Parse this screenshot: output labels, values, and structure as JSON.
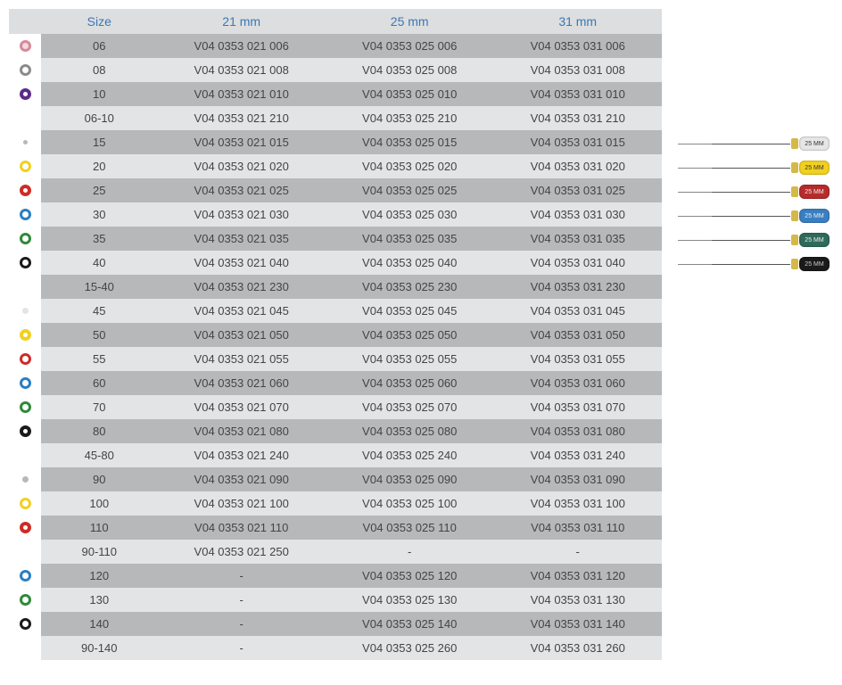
{
  "table": {
    "header_color": "#3a77b7",
    "row_colors": {
      "dark": "#b7b8ba",
      "light": "#e3e4e6",
      "header": "#dddedf"
    },
    "columns": [
      "",
      "Size",
      "21 mm",
      "25 mm",
      "31 mm"
    ],
    "rows": [
      {
        "ring": {
          "border": "#d58a9a",
          "fill": "#f5d9df",
          "w": 3
        },
        "size": "06",
        "c21": "V04 0353 021 006",
        "c25": "V04 0353 025 006",
        "c31": "V04 0353 031 006",
        "shade": "dark"
      },
      {
        "ring": {
          "border": "#8a8b8d",
          "fill": "#ffffff",
          "w": 3
        },
        "size": "08",
        "c21": "V04 0353 021 008",
        "c25": "V04 0353 025 008",
        "c31": "V04 0353 031 008",
        "shade": "light"
      },
      {
        "ring": {
          "border": "#5a2d88",
          "fill": "#ffffff",
          "w": 4
        },
        "size": "10",
        "c21": "V04 0353 021 010",
        "c25": "V04 0353 025 010",
        "c31": "V04 0353 031 010",
        "shade": "dark"
      },
      {
        "ring": null,
        "size": "06-10",
        "c21": "V04 0353 021 210",
        "c25": "V04 0353 025 210",
        "c31": "V04 0353 031 210",
        "shade": "light"
      },
      {
        "ring": {
          "border": "#ffffff",
          "fill": "#b7b8ba",
          "w": 4
        },
        "size": "15",
        "c21": "V04 0353 021 015",
        "c25": "V04 0353 025 015",
        "c31": "V04 0353 031 015",
        "shade": "dark"
      },
      {
        "ring": {
          "border": "#f2d021",
          "fill": "#ffffff",
          "w": 3
        },
        "size": "20",
        "c21": "V04 0353 021 020",
        "c25": "V04 0353 025 020",
        "c31": "V04 0353 031 020",
        "shade": "light"
      },
      {
        "ring": {
          "border": "#cf2b26",
          "fill": "#ffffff",
          "w": 4
        },
        "size": "25",
        "c21": "V04 0353 021 025",
        "c25": "V04 0353 025 025",
        "c31": "V04 0353 031 025",
        "shade": "dark"
      },
      {
        "ring": {
          "border": "#2b7fc2",
          "fill": "#ffffff",
          "w": 3
        },
        "size": "30",
        "c21": "V04 0353 021 030",
        "c25": "V04 0353 025 030",
        "c31": "V04 0353 031 030",
        "shade": "light"
      },
      {
        "ring": {
          "border": "#2e8a3a",
          "fill": "#ffffff",
          "w": 3
        },
        "size": "35",
        "c21": "V04 0353 021 035",
        "c25": "V04 0353 025 035",
        "c31": "V04 0353 031 035",
        "shade": "dark"
      },
      {
        "ring": {
          "border": "#1a1a1a",
          "fill": "#ffffff",
          "w": 3
        },
        "size": "40",
        "c21": "V04 0353 021 040",
        "c25": "V04 0353 025 040",
        "c31": "V04 0353 031 040",
        "shade": "light"
      },
      {
        "ring": null,
        "size": "15-40",
        "c21": "V04 0353 021 230",
        "c25": "V04 0353 025 230",
        "c31": "V04 0353 031 230",
        "shade": "dark"
      },
      {
        "ring": {
          "border": "#ffffff",
          "fill": "#e3e4e6",
          "w": 3
        },
        "size": "45",
        "c21": "V04 0353 021 045",
        "c25": "V04 0353 025 045",
        "c31": "V04 0353 031 045",
        "shade": "light"
      },
      {
        "ring": {
          "border": "#f2d021",
          "fill": "#ffffff",
          "w": 4
        },
        "size": "50",
        "c21": "V04 0353 021 050",
        "c25": "V04 0353 025 050",
        "c31": "V04 0353 031 050",
        "shade": "dark"
      },
      {
        "ring": {
          "border": "#cf2b26",
          "fill": "#ffffff",
          "w": 3
        },
        "size": "55",
        "c21": "V04 0353 021 055",
        "c25": "V04 0353 025 055",
        "c31": "V04 0353 031 055",
        "shade": "light"
      },
      {
        "ring": {
          "border": "#2b7fc2",
          "fill": "#ffffff",
          "w": 3
        },
        "size": "60",
        "c21": "V04 0353 021 060",
        "c25": "V04 0353 025 060",
        "c31": "V04 0353 031 060",
        "shade": "dark"
      },
      {
        "ring": {
          "border": "#2e8a3a",
          "fill": "#ffffff",
          "w": 3
        },
        "size": "70",
        "c21": "V04 0353 021 070",
        "c25": "V04 0353 025 070",
        "c31": "V04 0353 031 070",
        "shade": "light"
      },
      {
        "ring": {
          "border": "#1a1a1a",
          "fill": "#ffffff",
          "w": 4
        },
        "size": "80",
        "c21": "V04 0353 021 080",
        "c25": "V04 0353 025 080",
        "c31": "V04 0353 031 080",
        "shade": "dark"
      },
      {
        "ring": null,
        "size": "45-80",
        "c21": "V04 0353 021 240",
        "c25": "V04 0353 025 240",
        "c31": "V04 0353 031 240",
        "shade": "light"
      },
      {
        "ring": {
          "border": "#ffffff",
          "fill": "#b7b8ba",
          "w": 3
        },
        "size": "90",
        "c21": "V04 0353 021 090",
        "c25": "V04 0353 025 090",
        "c31": "V04 0353 031 090",
        "shade": "dark"
      },
      {
        "ring": {
          "border": "#f2d021",
          "fill": "#ffffff",
          "w": 3
        },
        "size": "100",
        "c21": "V04 0353 021 100",
        "c25": "V04 0353 025 100",
        "c31": "V04 0353 031 100",
        "shade": "light"
      },
      {
        "ring": {
          "border": "#cf2b26",
          "fill": "#ffffff",
          "w": 4
        },
        "size": "110",
        "c21": "V04 0353 021 110",
        "c25": "V04 0353 025 110",
        "c31": "V04 0353 031 110",
        "shade": "dark"
      },
      {
        "ring": null,
        "size": "90-110",
        "c21": "V04 0353 021 250",
        "c25": "-",
        "c31": "-",
        "shade": "light"
      },
      {
        "ring": {
          "border": "#2b7fc2",
          "fill": "#ffffff",
          "w": 3
        },
        "size": "120",
        "c21": "-",
        "c25": "V04 0353 025 120",
        "c31": "V04 0353 031 120",
        "shade": "dark"
      },
      {
        "ring": {
          "border": "#2e8a3a",
          "fill": "#ffffff",
          "w": 3
        },
        "size": "130",
        "c21": "-",
        "c25": "V04 0353 025 130",
        "c31": "V04 0353 031 130",
        "shade": "light"
      },
      {
        "ring": {
          "border": "#1a1a1a",
          "fill": "#ffffff",
          "w": 3
        },
        "size": "140",
        "c21": "-",
        "c25": "V04 0353 025 140",
        "c31": "V04 0353 031 140",
        "shade": "dark"
      },
      {
        "ring": null,
        "size": "90-140",
        "c21": "-",
        "c25": "V04 0353 025 260",
        "c31": "V04 0353 031 260",
        "shade": "light"
      }
    ]
  },
  "files_image": {
    "handle_label": "25 MM",
    "items": [
      {
        "color": "#e6e6e6",
        "text": "#333"
      },
      {
        "color": "#f2d021",
        "text": "#333"
      },
      {
        "color": "#b52c2c",
        "text": "#eee"
      },
      {
        "color": "#3a7fc2",
        "text": "#eee"
      },
      {
        "color": "#2f6a5a",
        "text": "#eee"
      },
      {
        "color": "#1a1a1a",
        "text": "#ccc"
      }
    ]
  }
}
